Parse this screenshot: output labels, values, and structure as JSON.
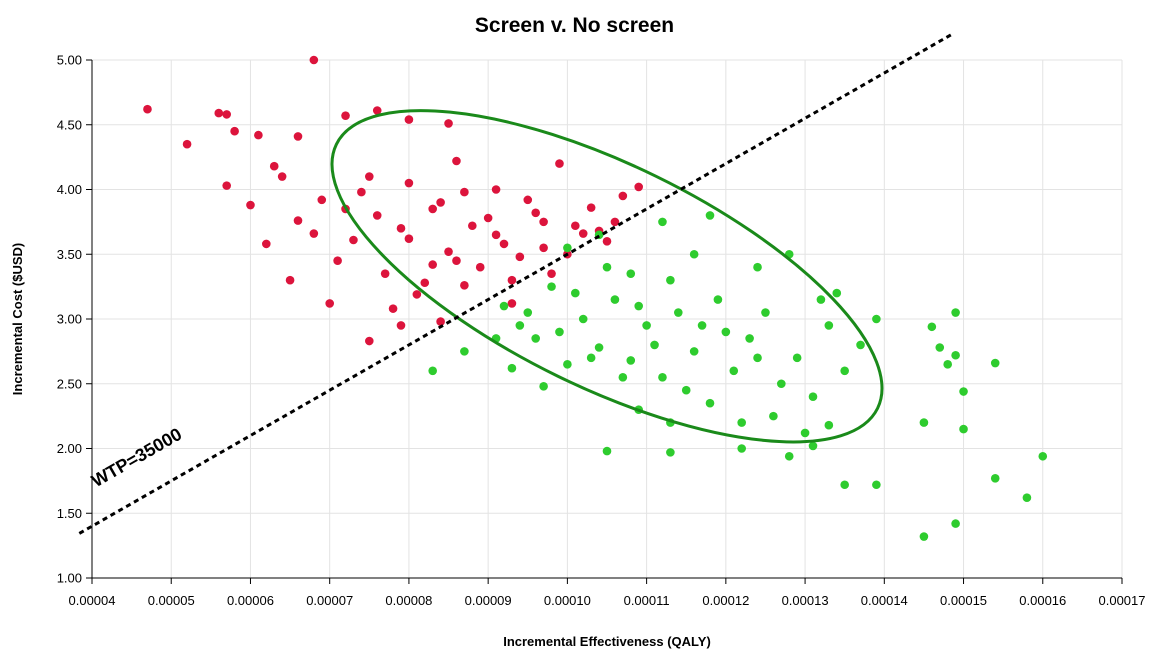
{
  "chart_data": {
    "type": "scatter",
    "title": "Screen v. No screen",
    "xlabel": "Incremental Effectiveness (QALY)",
    "ylabel": "Incremental Cost ($USD)",
    "xlim": [
      4e-05,
      0.00017
    ],
    "ylim": [
      1.0,
      5.0
    ],
    "x_ticks": [
      "0.00004",
      "0.00005",
      "0.00006",
      "0.00007",
      "0.00008",
      "0.00009",
      "0.00010",
      "0.00011",
      "0.00012",
      "0.00013",
      "0.00014",
      "0.00015",
      "0.00016",
      "0.00017"
    ],
    "y_ticks": [
      "1.00",
      "1.50",
      "2.00",
      "2.50",
      "3.00",
      "3.50",
      "4.00",
      "4.50",
      "5.00"
    ],
    "grid": true,
    "wtp_line": {
      "label": "WTP=35000",
      "slope_usd_per_qaly": 35000
    },
    "ellipse": {
      "center": [
        0.000105,
        3.33
      ],
      "semi_axis_x": 3.8e-05,
      "semi_axis_y": 0.86,
      "rotation_deg": 26,
      "color": "#1a8a1a"
    },
    "series": [
      {
        "color": "#dc143c",
        "points": [
          [
            4.7e-05,
            4.62
          ],
          [
            5.2e-05,
            4.35
          ],
          [
            5.6e-05,
            4.59
          ],
          [
            5.7e-05,
            4.58
          ],
          [
            5.8e-05,
            4.45
          ],
          [
            5.7e-05,
            4.03
          ],
          [
            6.1e-05,
            4.42
          ],
          [
            6.3e-05,
            4.18
          ],
          [
            6.6e-05,
            4.41
          ],
          [
            6.8e-05,
            5.0
          ],
          [
            7.2e-05,
            4.57
          ],
          [
            7.6e-05,
            4.61
          ],
          [
            8e-05,
            4.54
          ],
          [
            8.5e-05,
            4.51
          ],
          [
            6.5e-05,
            3.3
          ],
          [
            7e-05,
            3.12
          ],
          [
            7.5e-05,
            2.83
          ],
          [
            6e-05,
            3.88
          ],
          [
            6.2e-05,
            3.58
          ],
          [
            6.6e-05,
            3.76
          ],
          [
            6.9e-05,
            3.92
          ],
          [
            7.1e-05,
            3.45
          ],
          [
            7.3e-05,
            3.61
          ],
          [
            7.5e-05,
            4.1
          ],
          [
            7.7e-05,
            3.35
          ],
          [
            7.9e-05,
            3.7
          ],
          [
            8.1e-05,
            3.19
          ],
          [
            8.3e-05,
            3.85
          ],
          [
            8.5e-05,
            3.52
          ],
          [
            8.7e-05,
            3.98
          ],
          [
            8.9e-05,
            3.4
          ],
          [
            9.1e-05,
            3.65
          ],
          [
            9.3e-05,
            3.3
          ],
          [
            9.5e-05,
            3.92
          ],
          [
            9.7e-05,
            3.55
          ],
          [
            9.9e-05,
            4.2
          ],
          [
            0.000101,
            3.72
          ],
          [
            0.000103,
            3.86
          ],
          [
            0.000105,
            3.6
          ],
          [
            0.000107,
            3.95
          ],
          [
            0.000109,
            4.02
          ],
          [
            7.8e-05,
            3.08
          ],
          [
            8.2e-05,
            3.28
          ],
          [
            8.6e-05,
            3.45
          ],
          [
            9e-05,
            3.78
          ],
          [
            9.4e-05,
            3.48
          ],
          [
            9.8e-05,
            3.35
          ],
          [
            0.000102,
            3.66
          ],
          [
            0.000106,
            3.75
          ],
          [
            7.4e-05,
            3.98
          ],
          [
            7.6e-05,
            3.8
          ],
          [
            8e-05,
            3.62
          ],
          [
            8.4e-05,
            3.9
          ],
          [
            8.8e-05,
            3.72
          ],
          [
            9.2e-05,
            3.58
          ],
          [
            9.6e-05,
            3.82
          ],
          [
            0.0001,
            3.5
          ],
          [
            0.000104,
            3.68
          ],
          [
            6.4e-05,
            4.1
          ],
          [
            6.8e-05,
            3.66
          ],
          [
            7.2e-05,
            3.85
          ],
          [
            8e-05,
            4.05
          ],
          [
            8.6e-05,
            4.22
          ],
          [
            9.1e-05,
            4.0
          ],
          [
            9.7e-05,
            3.75
          ],
          [
            8.3e-05,
            3.42
          ],
          [
            8.7e-05,
            3.26
          ],
          [
            9.3e-05,
            3.12
          ],
          [
            7.9e-05,
            2.95
          ],
          [
            8.4e-05,
            2.98
          ]
        ]
      },
      {
        "color": "#2ecc2e",
        "points": [
          [
            8.3e-05,
            2.6
          ],
          [
            8.7e-05,
            2.75
          ],
          [
            9.1e-05,
            2.85
          ],
          [
            9.3e-05,
            2.62
          ],
          [
            9.5e-05,
            3.05
          ],
          [
            9.7e-05,
            2.48
          ],
          [
            9.9e-05,
            2.9
          ],
          [
            0.000101,
            3.2
          ],
          [
            0.000103,
            2.7
          ],
          [
            0.000105,
            3.4
          ],
          [
            0.000107,
            2.55
          ],
          [
            0.000109,
            3.1
          ],
          [
            0.000111,
            2.8
          ],
          [
            0.000113,
            3.3
          ],
          [
            0.000115,
            2.45
          ],
          [
            0.000117,
            2.95
          ],
          [
            0.000119,
            3.15
          ],
          [
            0.000121,
            2.6
          ],
          [
            0.000123,
            2.85
          ],
          [
            0.000125,
            3.05
          ],
          [
            0.000127,
            2.5
          ],
          [
            0.000129,
            2.7
          ],
          [
            0.000131,
            2.4
          ],
          [
            0.000133,
            2.95
          ],
          [
            0.000135,
            2.6
          ],
          [
            0.000137,
            2.8
          ],
          [
            0.000139,
            3.0
          ],
          [
            0.000105,
            1.98
          ],
          [
            0.000113,
            1.97
          ],
          [
            0.000122,
            2.0
          ],
          [
            0.000128,
            1.94
          ],
          [
            0.000131,
            2.02
          ],
          [
            0.000135,
            1.72
          ],
          [
            0.000139,
            1.72
          ],
          [
            0.000145,
            2.2
          ],
          [
            0.000146,
            2.94
          ],
          [
            0.000147,
            2.78
          ],
          [
            0.000148,
            2.65
          ],
          [
            0.000149,
            3.05
          ],
          [
            0.000149,
            2.72
          ],
          [
            0.00015,
            2.15
          ],
          [
            0.00015,
            2.44
          ],
          [
            0.000154,
            2.66
          ],
          [
            0.000154,
            1.77
          ],
          [
            0.000158,
            1.62
          ],
          [
            0.00016,
            1.94
          ],
          [
            0.000145,
            1.32
          ],
          [
            0.000149,
            1.42
          ],
          [
            0.0001,
            3.55
          ],
          [
            0.000104,
            3.65
          ],
          [
            0.000108,
            3.35
          ],
          [
            0.000112,
            3.75
          ],
          [
            0.000116,
            3.5
          ],
          [
            0.000118,
            3.8
          ],
          [
            0.000124,
            3.4
          ],
          [
            0.000128,
            3.5
          ],
          [
            0.000132,
            3.15
          ],
          [
            0.000134,
            3.2
          ],
          [
            9.8e-05,
            3.25
          ],
          [
            0.000102,
            3.0
          ],
          [
            0.000106,
            3.15
          ],
          [
            0.00011,
            2.95
          ],
          [
            0.000114,
            3.05
          ],
          [
            9.6e-05,
            2.85
          ],
          [
            0.0001,
            2.65
          ],
          [
            0.000104,
            2.78
          ],
          [
            0.000108,
            2.68
          ],
          [
            0.000112,
            2.55
          ],
          [
            0.000116,
            2.75
          ],
          [
            0.00012,
            2.9
          ],
          [
            0.000124,
            2.7
          ],
          [
            9.2e-05,
            3.1
          ],
          [
            9.4e-05,
            2.95
          ],
          [
            0.000118,
            2.35
          ],
          [
            0.000126,
            2.25
          ],
          [
            0.00013,
            2.12
          ],
          [
            0.000133,
            2.18
          ],
          [
            0.000122,
            2.2
          ],
          [
            0.000113,
            2.2
          ],
          [
            0.000109,
            2.3
          ]
        ]
      }
    ]
  }
}
